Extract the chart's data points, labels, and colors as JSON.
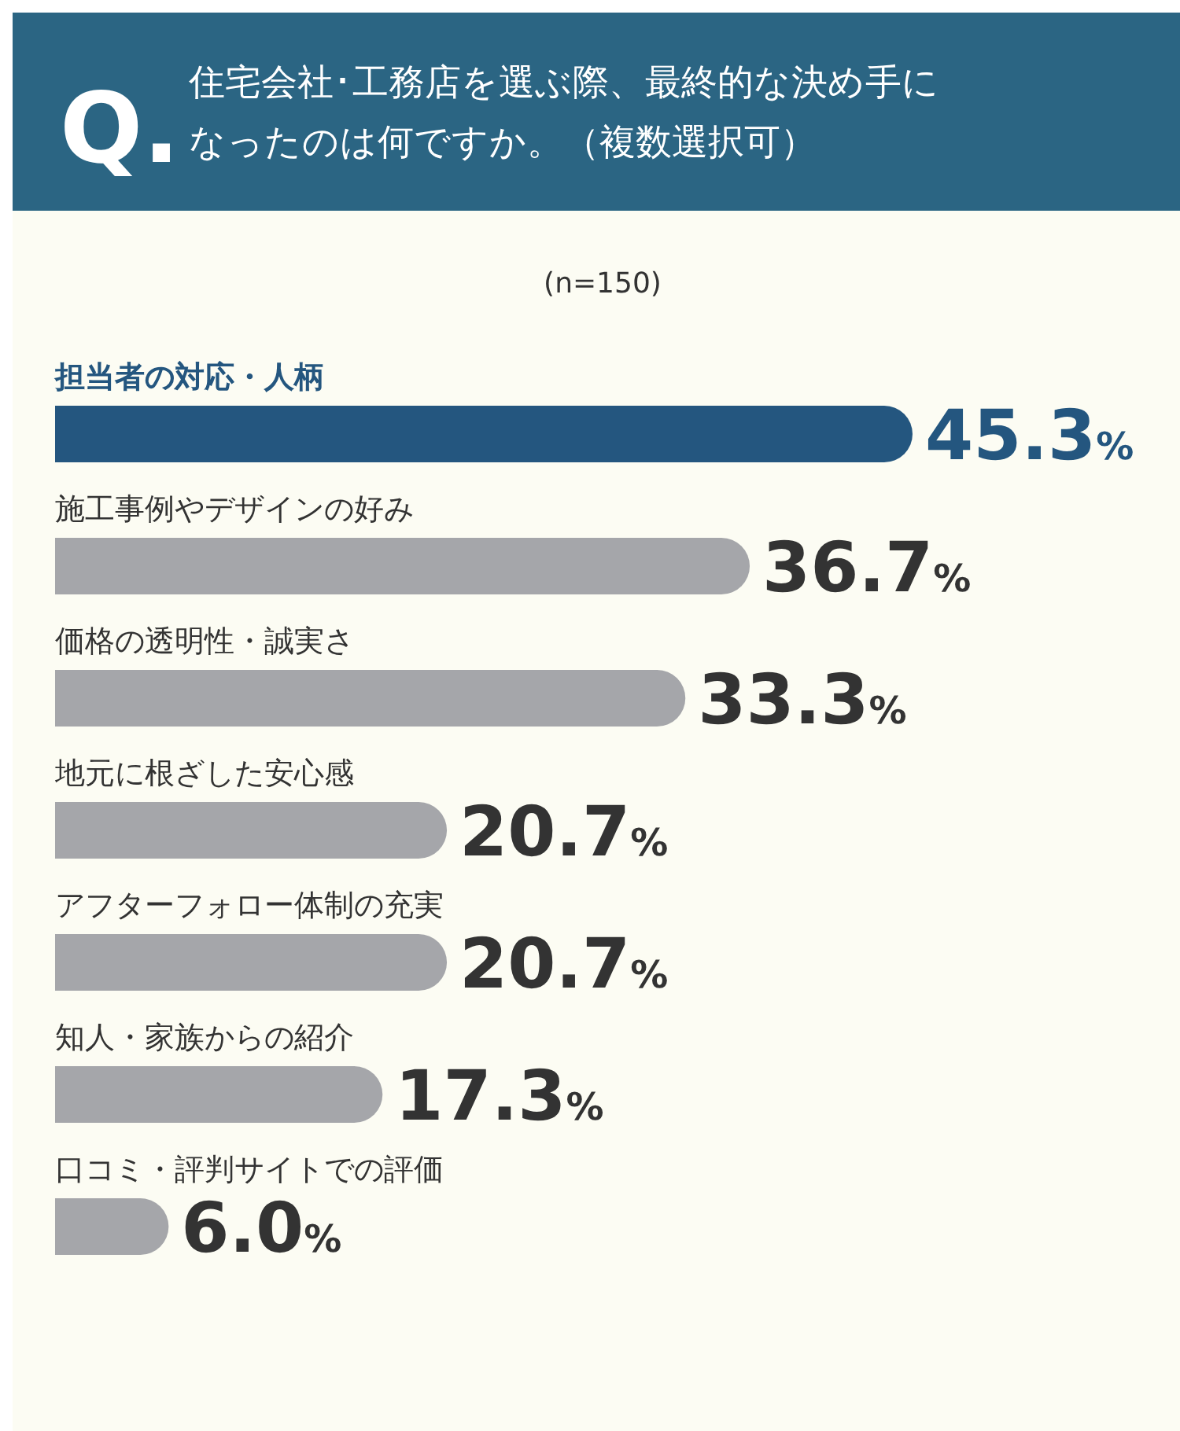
{
  "chart_data": {
    "type": "bar",
    "orientation": "horizontal",
    "title": "住宅会社･工務店を選ぶ際、最終的な決め手になったのは何ですか。（複数選択可）",
    "subtitle": "(n=150)",
    "annotations": [
      "Q."
    ],
    "categories": [
      "担当者の対応・人柄",
      "施工事例やデザインの好み",
      "価格の透明性・誠実さ",
      "地元に根ざした安心感",
      "アフターフォロー体制の充実",
      "知人・家族からの紹介",
      "口コミ・評判サイトでの評価"
    ],
    "values": [
      45.3,
      36.7,
      33.3,
      20.7,
      20.7,
      17.3,
      6.0
    ],
    "colors": [
      "#24567f",
      "#a5a6aa",
      "#a5a6aa",
      "#a5a6aa",
      "#a5a6aa",
      "#a5a6aa",
      "#a5a6aa"
    ],
    "value_labels": [
      "45.3%",
      "36.7%",
      "33.3%",
      "20.7%",
      "20.7%",
      "17.3%",
      "6.0%"
    ]
  }
}
